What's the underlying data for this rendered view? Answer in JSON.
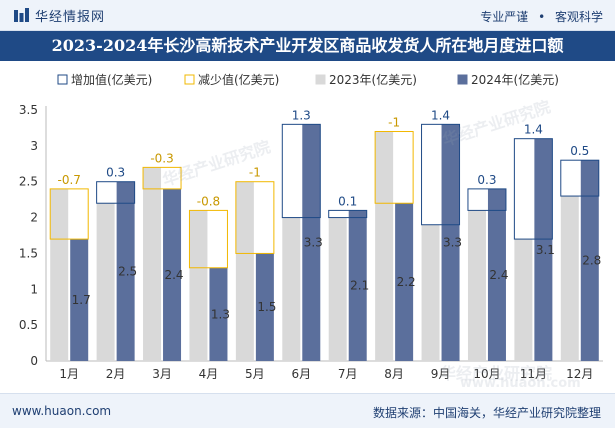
{
  "header": {
    "brand": "华经情报网",
    "tags": [
      "专业严谨",
      "客观科学"
    ]
  },
  "title": "2023-2024年长沙高新技术产业开发区商品收发货人所在地月度进口额",
  "footer": {
    "url": "www.huaon.com",
    "source": "数据来源：中国海关，华经产业研究院整理"
  },
  "watermarks": [
    "华经产业研究院",
    "华经产业研究院",
    "华经产业研究院",
    "www.huaon.com"
  ],
  "colors": {
    "increase": "#1f4a86",
    "decrease": "#f2b800",
    "y2023": "#d9d9d9",
    "y2024": "#5b6f9c",
    "title_band": "#1f4a86"
  },
  "chart_data": {
    "type": "bar",
    "categories": [
      "1月",
      "2月",
      "3月",
      "4月",
      "5月",
      "6月",
      "7月",
      "8月",
      "9月",
      "10月",
      "11月",
      "12月"
    ],
    "series": [
      {
        "name": "2023年(亿美元)",
        "values": [
          2.4,
          2.2,
          2.7,
          2.1,
          2.5,
          2.0,
          2.0,
          3.2,
          1.9,
          2.1,
          1.7,
          2.3
        ]
      },
      {
        "name": "2024年(亿美元)",
        "values": [
          1.7,
          2.5,
          2.4,
          1.3,
          1.5,
          3.3,
          2.1,
          2.2,
          3.3,
          2.4,
          3.1,
          2.8
        ]
      }
    ],
    "change": [
      -0.7,
      0.3,
      -0.3,
      -0.8,
      -1,
      1.3,
      0.1,
      -1,
      1.4,
      0.3,
      1.4,
      0.5
    ],
    "change_labels": [
      "-0.7",
      "0.3",
      "-0.3",
      "-0.8",
      "-1",
      "1.3",
      "0.1",
      "-1",
      "1.4",
      "0.3",
      "1.4",
      "0.5"
    ],
    "value_labels_2024": [
      "1.7",
      "2.5",
      "2.4",
      "1.3",
      "1.5",
      "3.3",
      "2.1",
      "2.2",
      "3.3",
      "2.4",
      "3.1",
      "2.8"
    ],
    "legend": [
      "增加值(亿美元)",
      "减少值(亿美元)",
      "2023年(亿美元)",
      "2024年(亿美元)"
    ],
    "legend_position": "top",
    "y_ticks": [
      "0",
      "0.5",
      "1",
      "1.5",
      "2",
      "2.5",
      "3",
      "3.5"
    ],
    "ylim": [
      0,
      3.5
    ],
    "grid": false
  }
}
